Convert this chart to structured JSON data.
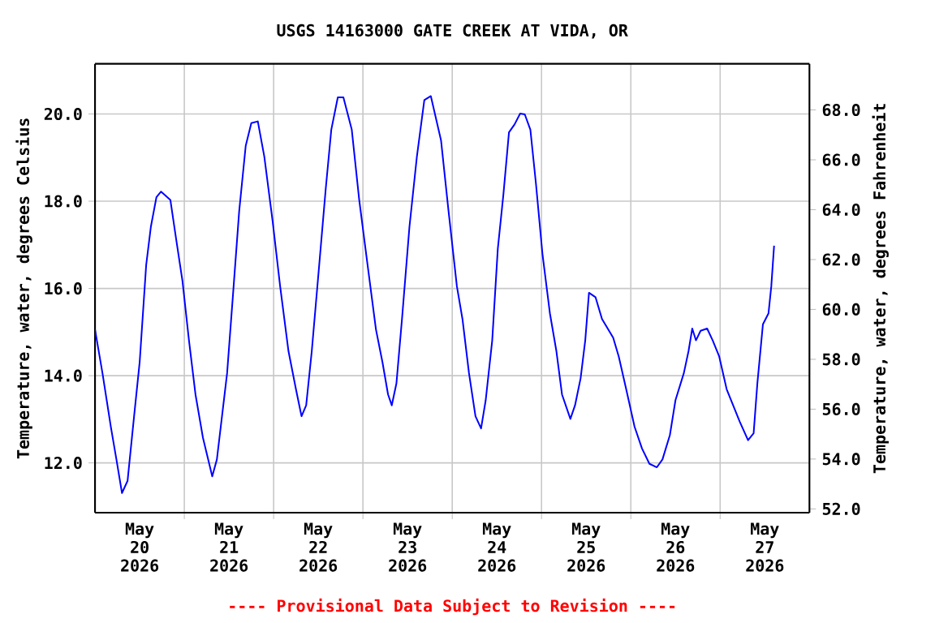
{
  "chart_data": {
    "type": "line",
    "title": "USGS 14163000 GATE CREEK AT VIDA, OR",
    "ylabel": "Temperature, water, degrees Celsius",
    "y2label": "Temperature, water, degrees Fahrenheit",
    "annotations": [
      "---- Provisional Data Subject to Revision ----"
    ],
    "x": [
      "2026-05-20T00:00",
      "2026-05-20T02:00",
      "2026-05-20T04:15",
      "2026-05-20T05:45",
      "2026-05-20T07:15",
      "2026-05-20T08:45",
      "2026-05-20T10:30",
      "2026-05-20T12:00",
      "2026-05-20T13:45",
      "2026-05-20T15:00",
      "2026-05-20T16:30",
      "2026-05-20T17:45",
      "2026-05-20T20:15",
      "2026-05-20T21:45",
      "2026-05-20T23:30",
      "2026-05-21T01:15",
      "2026-05-21T03:00",
      "2026-05-21T05:00",
      "2026-05-21T07:30",
      "2026-05-21T08:45",
      "2026-05-21T11:30",
      "2026-05-21T13:15",
      "2026-05-21T14:45",
      "2026-05-21T16:30",
      "2026-05-21T18:00",
      "2026-05-21T19:45",
      "2026-05-21T21:30",
      "2026-05-21T23:45",
      "2026-05-22T01:45",
      "2026-05-22T04:00",
      "2026-05-22T06:00",
      "2026-05-22T07:30",
      "2026-05-22T08:45",
      "2026-05-22T10:15",
      "2026-05-22T12:00",
      "2026-05-22T14:00",
      "2026-05-22T15:30",
      "2026-05-22T17:15",
      "2026-05-22T18:45",
      "2026-05-22T21:00",
      "2026-05-22T23:00",
      "2026-05-23T01:15",
      "2026-05-23T03:30",
      "2026-05-23T05:15",
      "2026-05-23T06:45",
      "2026-05-23T07:45",
      "2026-05-23T09:00",
      "2026-05-23T10:30",
      "2026-05-23T12:30",
      "2026-05-23T14:30",
      "2026-05-23T16:30",
      "2026-05-23T18:15",
      "2026-05-23T21:00",
      "2026-05-23T23:00",
      "2026-05-24T01:15",
      "2026-05-24T02:45",
      "2026-05-24T04:30",
      "2026-05-24T06:15",
      "2026-05-24T07:45",
      "2026-05-24T09:00",
      "2026-05-24T10:45",
      "2026-05-24T12:15",
      "2026-05-24T13:45",
      "2026-05-24T15:15",
      "2026-05-24T16:45",
      "2026-05-24T18:15",
      "2026-05-24T19:30",
      "2026-05-24T21:00",
      "2026-05-24T22:30",
      "2026-05-25T00:15",
      "2026-05-25T02:15",
      "2026-05-25T04:00",
      "2026-05-25T05:30",
      "2026-05-25T07:45",
      "2026-05-25T09:00",
      "2026-05-25T10:30",
      "2026-05-25T11:45",
      "2026-05-25T12:45",
      "2026-05-25T14:30",
      "2026-05-25T16:15",
      "2026-05-25T19:15",
      "2026-05-25T20:45",
      "2026-05-25T22:45",
      "2026-05-26T01:00",
      "2026-05-26T03:00",
      "2026-05-26T05:00",
      "2026-05-26T07:00",
      "2026-05-26T08:30",
      "2026-05-26T10:30",
      "2026-05-26T12:00",
      "2026-05-26T14:15",
      "2026-05-26T15:30",
      "2026-05-26T16:30",
      "2026-05-26T17:30",
      "2026-05-26T18:45",
      "2026-05-26T20:30",
      "2026-05-26T22:00",
      "2026-05-26T23:45",
      "2026-05-27T01:45",
      "2026-05-27T03:30",
      "2026-05-27T05:15",
      "2026-05-27T07:30",
      "2026-05-27T09:00",
      "2026-05-27T10:00",
      "2026-05-27T11:30",
      "2026-05-27T13:00",
      "2026-05-27T13:45",
      "2026-05-27T14:30"
    ],
    "series": [
      {
        "color": "#0000ff",
        "values": [
          15.06,
          14.06,
          12.83,
          12.08,
          11.31,
          11.59,
          13.07,
          14.31,
          16.54,
          17.41,
          18.09,
          18.22,
          18.03,
          17.16,
          16.17,
          14.81,
          13.57,
          12.58,
          11.69,
          12.08,
          14.06,
          16.05,
          17.78,
          19.27,
          19.79,
          19.83,
          19.02,
          17.53,
          16.05,
          14.56,
          13.69,
          13.07,
          13.32,
          14.56,
          16.29,
          18.28,
          19.64,
          20.38,
          20.38,
          19.64,
          18.03,
          16.54,
          15.06,
          14.31,
          13.57,
          13.32,
          13.82,
          15.3,
          17.41,
          19.02,
          20.32,
          20.41,
          19.39,
          17.78,
          16.05,
          15.3,
          14.06,
          13.07,
          12.79,
          13.44,
          14.81,
          16.91,
          18.15,
          19.58,
          19.76,
          20.01,
          19.99,
          19.64,
          18.4,
          16.79,
          15.43,
          14.56,
          13.57,
          13.01,
          13.32,
          13.94,
          14.81,
          15.9,
          15.8,
          15.3,
          14.87,
          14.44,
          13.69,
          12.83,
          12.33,
          11.98,
          11.9,
          12.08,
          12.64,
          13.44,
          14.06,
          14.56,
          15.08,
          14.81,
          15.03,
          15.08,
          14.81,
          14.44,
          13.69,
          13.32,
          12.95,
          12.52,
          12.68,
          13.82,
          15.18,
          15.43,
          16.05,
          16.98
        ]
      }
    ],
    "xlim": [
      "2026-05-20T00:00",
      "2026-05-28T00:00"
    ],
    "xticks": [
      {
        "value": "2026-05-21T00:00",
        "label": null
      },
      {
        "value": "2026-05-22T00:00",
        "label": null
      },
      {
        "value": "2026-05-23T00:00",
        "label": null
      },
      {
        "value": "2026-05-24T00:00",
        "label": null
      },
      {
        "value": "2026-05-25T00:00",
        "label": null
      },
      {
        "value": "2026-05-26T00:00",
        "label": null
      },
      {
        "value": "2026-05-27T00:00",
        "label": null
      },
      {
        "value": "2026-05-20T12:00",
        "label": "May 20 2026"
      },
      {
        "value": "2026-05-21T12:00",
        "label": "May 21 2026"
      },
      {
        "value": "2026-05-22T12:00",
        "label": "May 22 2026"
      },
      {
        "value": "2026-05-23T12:00",
        "label": "May 23 2026"
      },
      {
        "value": "2026-05-24T12:00",
        "label": "May 24 2026"
      },
      {
        "value": "2026-05-25T12:00",
        "label": "May 25 2026"
      },
      {
        "value": "2026-05-26T12:00",
        "label": "May 26 2026"
      },
      {
        "value": "2026-05-27T12:00",
        "label": "May 27 2026"
      }
    ],
    "ylim": [
      10.86,
      21.15
    ],
    "yticks": [
      {
        "value": 12,
        "label": "12.0"
      },
      {
        "value": 14,
        "label": "14.0"
      },
      {
        "value": 16,
        "label": "16.0"
      },
      {
        "value": 18,
        "label": "18.0"
      },
      {
        "value": 20,
        "label": "20.0"
      }
    ],
    "y2lim": [
      51.85,
      69.85
    ],
    "y2ticks": [
      {
        "value": 52,
        "label": "52.0"
      },
      {
        "value": 54,
        "label": "54.0"
      },
      {
        "value": 56,
        "label": "56.0"
      },
      {
        "value": 58,
        "label": "58.0"
      },
      {
        "value": 60,
        "label": "60.0"
      },
      {
        "value": 62,
        "label": "62.0"
      },
      {
        "value": 64,
        "label": "64.0"
      },
      {
        "value": 66,
        "label": "66.0"
      },
      {
        "value": 68,
        "label": "68.0"
      }
    ],
    "grid": true
  }
}
